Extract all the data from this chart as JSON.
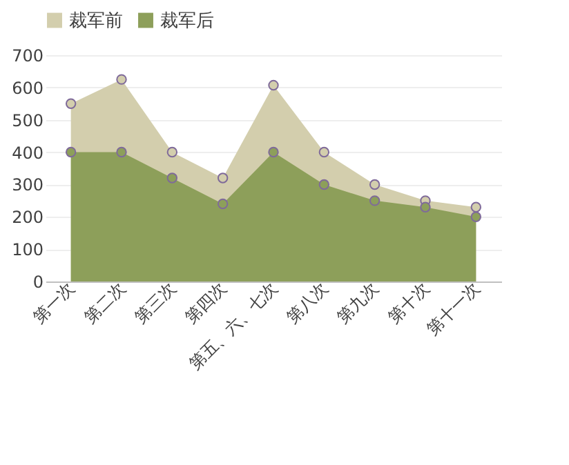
{
  "chart_data": {
    "type": "area",
    "categories": [
      "第一次",
      "第二次",
      "第三次",
      "第四次",
      "第五、六、七次",
      "第八次",
      "第九次",
      "第十次",
      "第十一次"
    ],
    "series": [
      {
        "name": "裁军前",
        "color": "#d3cead",
        "values": [
          550,
          625,
          400,
          320,
          607,
          400,
          300,
          250,
          230
        ]
      },
      {
        "name": "裁军后",
        "color": "#8d9f5a",
        "values": [
          400,
          400,
          320,
          240,
          400,
          300,
          250,
          230,
          200
        ]
      }
    ],
    "ylim": [
      0,
      700
    ],
    "yticks": [
      0,
      100,
      200,
      300,
      400,
      500,
      600,
      700
    ],
    "grid": "y",
    "legend": "top",
    "marker": "circle"
  }
}
